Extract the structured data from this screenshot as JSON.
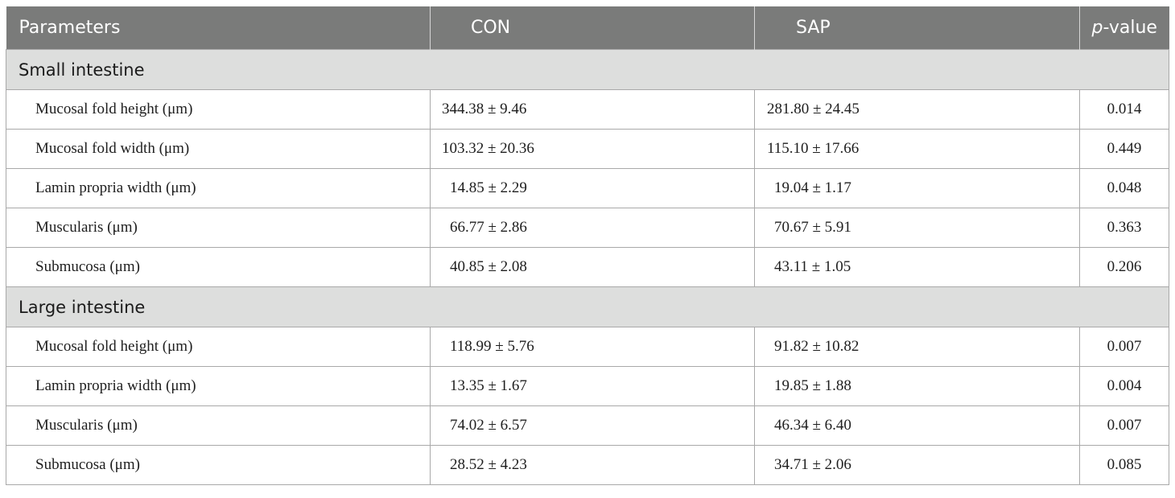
{
  "header": {
    "parameters": "Parameters",
    "con": "CON",
    "sap": "SAP",
    "p_italic": "p",
    "p_rest": "-value"
  },
  "sections": [
    {
      "title": "Small intestine",
      "rows": [
        {
          "param": "Mucosal fold height (μm)",
          "con": "344.38 ± 9.46",
          "sap": "281.80 ± 24.45",
          "p": "0.014"
        },
        {
          "param": "Mucosal fold width (μm)",
          "con": "103.32 ± 20.36",
          "sap": "115.10 ± 17.66",
          "p": "0.449"
        },
        {
          "param": "Lamin propria width (μm)",
          "con": "14.85 ± 2.29",
          "sap": "19.04 ± 1.17",
          "p": "0.048"
        },
        {
          "param": "Muscularis (μm)",
          "con": "66.77 ± 2.86",
          "sap": "70.67 ± 5.91",
          "p": "0.363"
        },
        {
          "param": "Submucosa (μm)",
          "con": "40.85 ± 2.08",
          "sap": "43.11 ± 1.05",
          "p": "0.206"
        }
      ]
    },
    {
      "title": "Large intestine",
      "rows": [
        {
          "param": "Mucosal fold height (μm)",
          "con": "118.99 ± 5.76",
          "sap": "91.82 ± 10.82",
          "p": "0.007"
        },
        {
          "param": "Lamin propria width (μm)",
          "con": "13.35 ± 1.67",
          "sap": "19.85 ± 1.88",
          "p": "0.004"
        },
        {
          "param": "Muscularis (μm)",
          "con": "74.02 ± 6.57",
          "sap": "46.34 ± 6.40",
          "p": "0.007"
        },
        {
          "param": "Submucosa (μm)",
          "con": "28.52 ± 4.23",
          "sap": "34.71 ± 2.06",
          "p": "0.085"
        }
      ]
    }
  ]
}
